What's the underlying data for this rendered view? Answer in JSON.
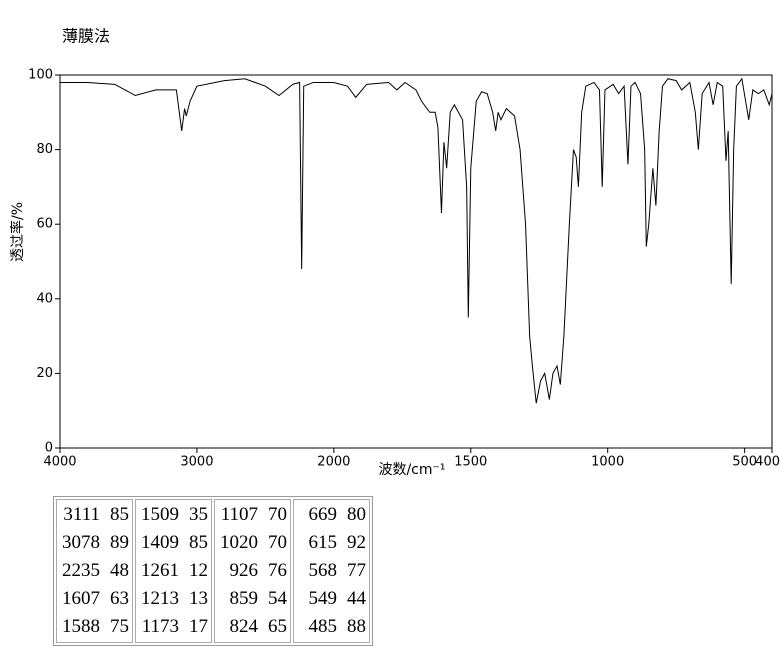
{
  "chart_data": {
    "type": "line",
    "title": "薄膜法",
    "xlabel": "波数/cm⁻¹",
    "ylabel": "透过率/%",
    "xlim": [
      4000,
      400
    ],
    "x_scale_change": 2000,
    "xticks": [
      4000,
      3000,
      2000,
      1500,
      1000,
      500,
      400
    ],
    "ylim": [
      0,
      100
    ],
    "yticks": [
      0,
      20,
      40,
      60,
      80,
      100
    ],
    "color": "#000000",
    "x": [
      4000,
      3800,
      3600,
      3450,
      3300,
      3150,
      3111,
      3090,
      3078,
      3050,
      3000,
      2800,
      2650,
      2500,
      2400,
      2300,
      2250,
      2235,
      2220,
      2150,
      2000,
      1950,
      1920,
      1880,
      1800,
      1770,
      1740,
      1700,
      1680,
      1650,
      1630,
      1620,
      1607,
      1598,
      1588,
      1575,
      1560,
      1530,
      1515,
      1509,
      1500,
      1480,
      1460,
      1440,
      1420,
      1409,
      1400,
      1390,
      1370,
      1340,
      1320,
      1300,
      1285,
      1275,
      1261,
      1245,
      1230,
      1213,
      1200,
      1185,
      1173,
      1160,
      1140,
      1125,
      1115,
      1107,
      1095,
      1080,
      1050,
      1030,
      1020,
      1010,
      980,
      960,
      940,
      926,
      915,
      900,
      880,
      865,
      859,
      850,
      835,
      824,
      812,
      800,
      780,
      750,
      730,
      700,
      680,
      669,
      655,
      630,
      615,
      600,
      580,
      568,
      560,
      549,
      540,
      530,
      510,
      485,
      470,
      450,
      430,
      410,
      400
    ],
    "values": [
      98,
      98,
      97.5,
      94.5,
      96,
      96,
      85,
      91,
      89,
      93,
      97,
      98.5,
      99,
      97,
      94.5,
      97.5,
      98,
      48,
      97,
      98,
      98,
      97,
      94,
      97.5,
      98,
      96,
      98,
      96,
      93,
      90,
      90,
      86,
      63,
      82,
      75,
      90,
      92,
      88,
      70,
      35,
      75,
      93,
      95.5,
      95,
      90,
      85,
      90,
      88,
      91,
      89,
      80,
      60,
      30,
      22,
      12,
      18,
      20,
      13,
      20,
      22,
      17,
      30,
      60,
      80,
      78,
      70,
      90,
      97,
      98,
      96,
      70,
      96,
      97.5,
      95,
      97,
      76,
      97,
      98,
      95,
      80,
      54,
      60,
      75,
      65,
      85,
      97,
      99,
      98.5,
      96,
      98,
      90,
      80,
      95,
      98,
      92,
      98,
      97,
      77,
      85,
      44,
      80,
      97,
      99,
      88,
      96,
      95,
      96,
      92,
      95
    ]
  },
  "peak_table": {
    "rows": [
      [
        [
          3111,
          85
        ],
        [
          1509,
          35
        ],
        [
          1107,
          70
        ],
        [
          669,
          80
        ]
      ],
      [
        [
          3078,
          89
        ],
        [
          1409,
          85
        ],
        [
          1020,
          70
        ],
        [
          615,
          92
        ]
      ],
      [
        [
          2235,
          48
        ],
        [
          1261,
          12
        ],
        [
          926,
          76
        ],
        [
          568,
          77
        ]
      ],
      [
        [
          1607,
          63
        ],
        [
          1213,
          13
        ],
        [
          859,
          54
        ],
        [
          549,
          44
        ]
      ],
      [
        [
          1588,
          75
        ],
        [
          1173,
          17
        ],
        [
          824,
          65
        ],
        [
          485,
          88
        ]
      ]
    ]
  }
}
